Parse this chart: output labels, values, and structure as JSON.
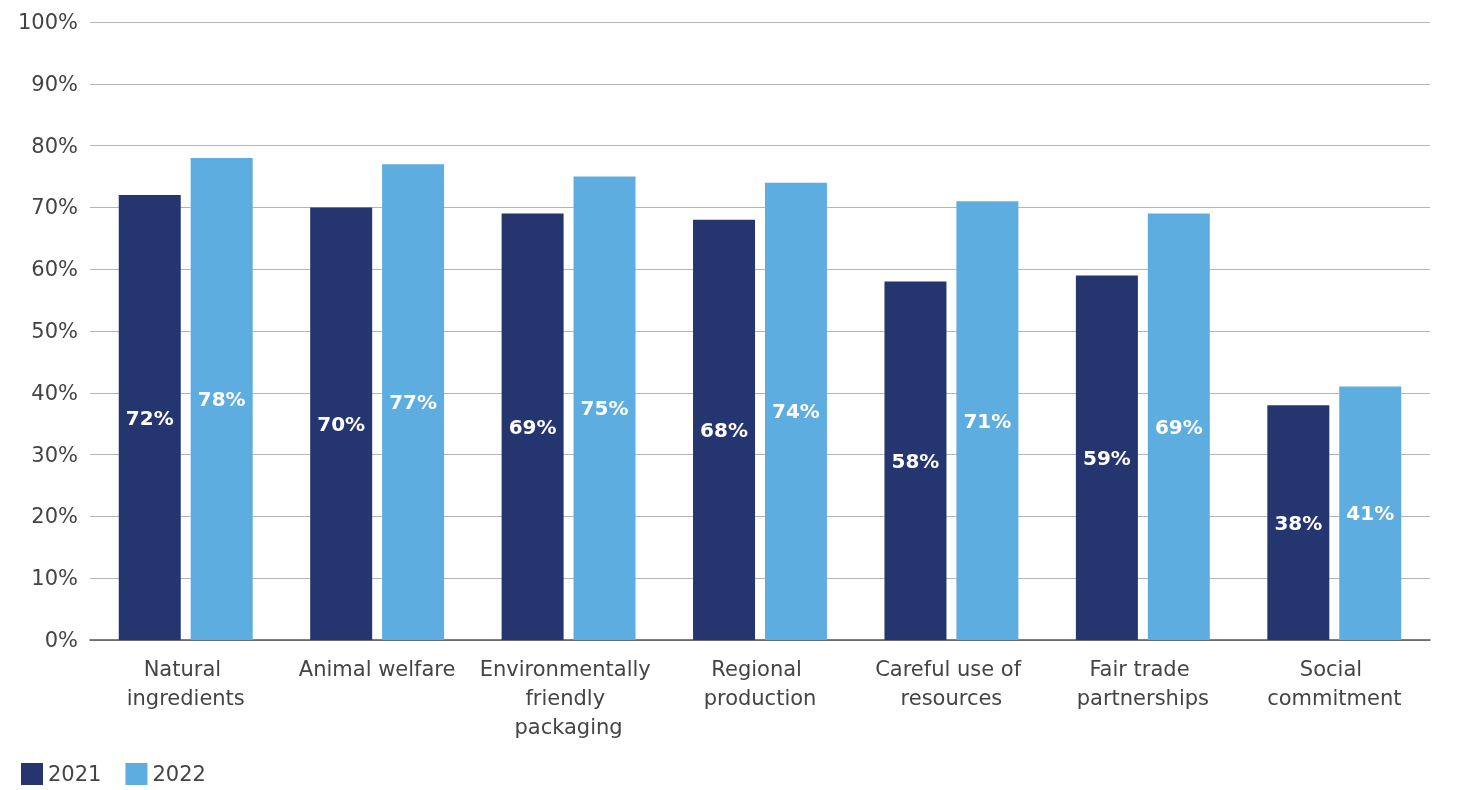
{
  "chart_data": {
    "type": "bar",
    "categories": [
      "Natural ingredients",
      "Animal welfare",
      "Environmentally friendly packaging",
      "Regional production",
      "Careful use of resources",
      "Fair trade partnerships",
      "Social commitment"
    ],
    "series": [
      {
        "name": "2021",
        "color": "#253570",
        "values": [
          72,
          70,
          69,
          68,
          58,
          59,
          38
        ],
        "value_labels": [
          "72%",
          "70%",
          "69%",
          "68%",
          "58%",
          "59%",
          "38%"
        ]
      },
      {
        "name": "2022",
        "color": "#5dade0",
        "values": [
          78,
          77,
          75,
          74,
          71,
          69,
          41
        ],
        "value_labels": [
          "78%",
          "77%",
          "75%",
          "74%",
          "71%",
          "69%",
          "41%"
        ]
      }
    ],
    "ylim": [
      0,
      100
    ],
    "yticks": [
      {
        "value": 0,
        "label": "0%"
      },
      {
        "value": 10,
        "label": "10%"
      },
      {
        "value": 20,
        "label": "20%"
      },
      {
        "value": 30,
        "label": "30%"
      },
      {
        "value": 40,
        "label": "40%"
      },
      {
        "value": 50,
        "label": "50%"
      },
      {
        "value": 60,
        "label": "60%"
      },
      {
        "value": 70,
        "label": "70%"
      },
      {
        "value": 80,
        "label": "80%"
      },
      {
        "value": 90,
        "label": "90%"
      },
      {
        "value": 100,
        "label": "100%"
      }
    ],
    "grid": "y",
    "legend": "bottom left"
  }
}
